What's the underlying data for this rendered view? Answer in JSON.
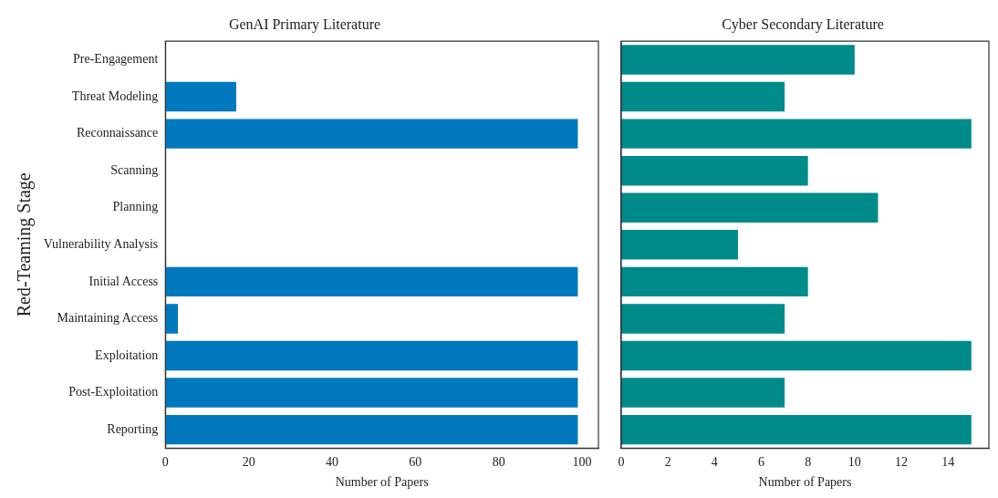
{
  "chart_data": [
    {
      "type": "bar",
      "orientation": "horizontal",
      "title": "GenAI Primary Literature",
      "xlabel": "Number of Papers",
      "ylabel": "Red-Teaming Stage",
      "categories": [
        "Pre-Engagement",
        "Threat Modeling",
        "Reconnaissance",
        "Scanning",
        "Planning",
        "Vulnerability Analysis",
        "Initial Access",
        "Maintaining Access",
        "Exploitation",
        "Post-Exploitation",
        "Reporting"
      ],
      "values": [
        0,
        17,
        99,
        0,
        0,
        0,
        99,
        3,
        99,
        99,
        99
      ],
      "color": "#0078be",
      "xlim": [
        0,
        103.95
      ],
      "xticks": [
        0,
        20,
        40,
        60,
        80,
        100
      ],
      "grid": false,
      "legend": false
    },
    {
      "type": "bar",
      "orientation": "horizontal",
      "title": "Cyber Secondary Literature",
      "xlabel": "Number of Papers",
      "categories": [
        null,
        null,
        null,
        null,
        null,
        null,
        null,
        null,
        null,
        null,
        null
      ],
      "values": [
        10,
        7,
        15,
        8,
        11,
        5,
        8,
        7,
        15,
        7,
        15
      ],
      "color": "#008b8b",
      "xlim": [
        0,
        15.75
      ],
      "xticks": [
        0,
        2,
        4,
        6,
        8,
        10,
        12,
        14
      ],
      "grid": false,
      "legend": false,
      "tick_labels": "x"
    }
  ]
}
